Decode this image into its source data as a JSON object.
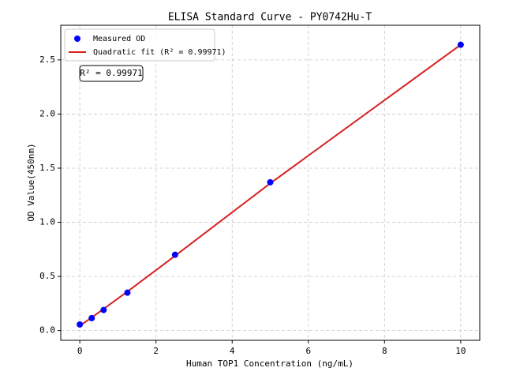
{
  "chart_data": {
    "type": "scatter",
    "title": "ELISA Standard Curve - PY0742Hu-T",
    "x_label": "Human TOP1 Concentration (ng/mL)",
    "y_label": "OD Value(450nm)",
    "annotation": "R² = 0.99971",
    "series": [
      {
        "name": "Measured OD",
        "type": "scatter",
        "color": "#0000ff",
        "x": [
          0,
          0.3125,
          0.625,
          1.25,
          2.5,
          5,
          10
        ],
        "values": [
          0.056,
          0.115,
          0.19,
          0.35,
          0.7,
          1.37,
          2.64
        ]
      },
      {
        "name": "Quadratic fit (R² = 0.99971)",
        "type": "line",
        "color": "#d62020",
        "x": [
          0,
          0.3125,
          0.625,
          1.25,
          2.5,
          5,
          10
        ],
        "values": [
          0.045,
          0.12,
          0.2,
          0.36,
          0.69,
          1.36,
          2.64
        ]
      }
    ],
    "xlim": [
      -0.5,
      10.5
    ],
    "xticks": [
      0,
      2,
      4,
      6,
      8,
      10
    ],
    "ylim": [
      -0.09,
      2.82
    ],
    "yticks": [
      {
        "value": 0,
        "label": "0.0"
      },
      0.5,
      {
        "value": 1,
        "label": "1.0"
      },
      1.5,
      {
        "value": 2,
        "label": "2.0"
      },
      2.5
    ],
    "grid": true,
    "legend": "upper left"
  }
}
